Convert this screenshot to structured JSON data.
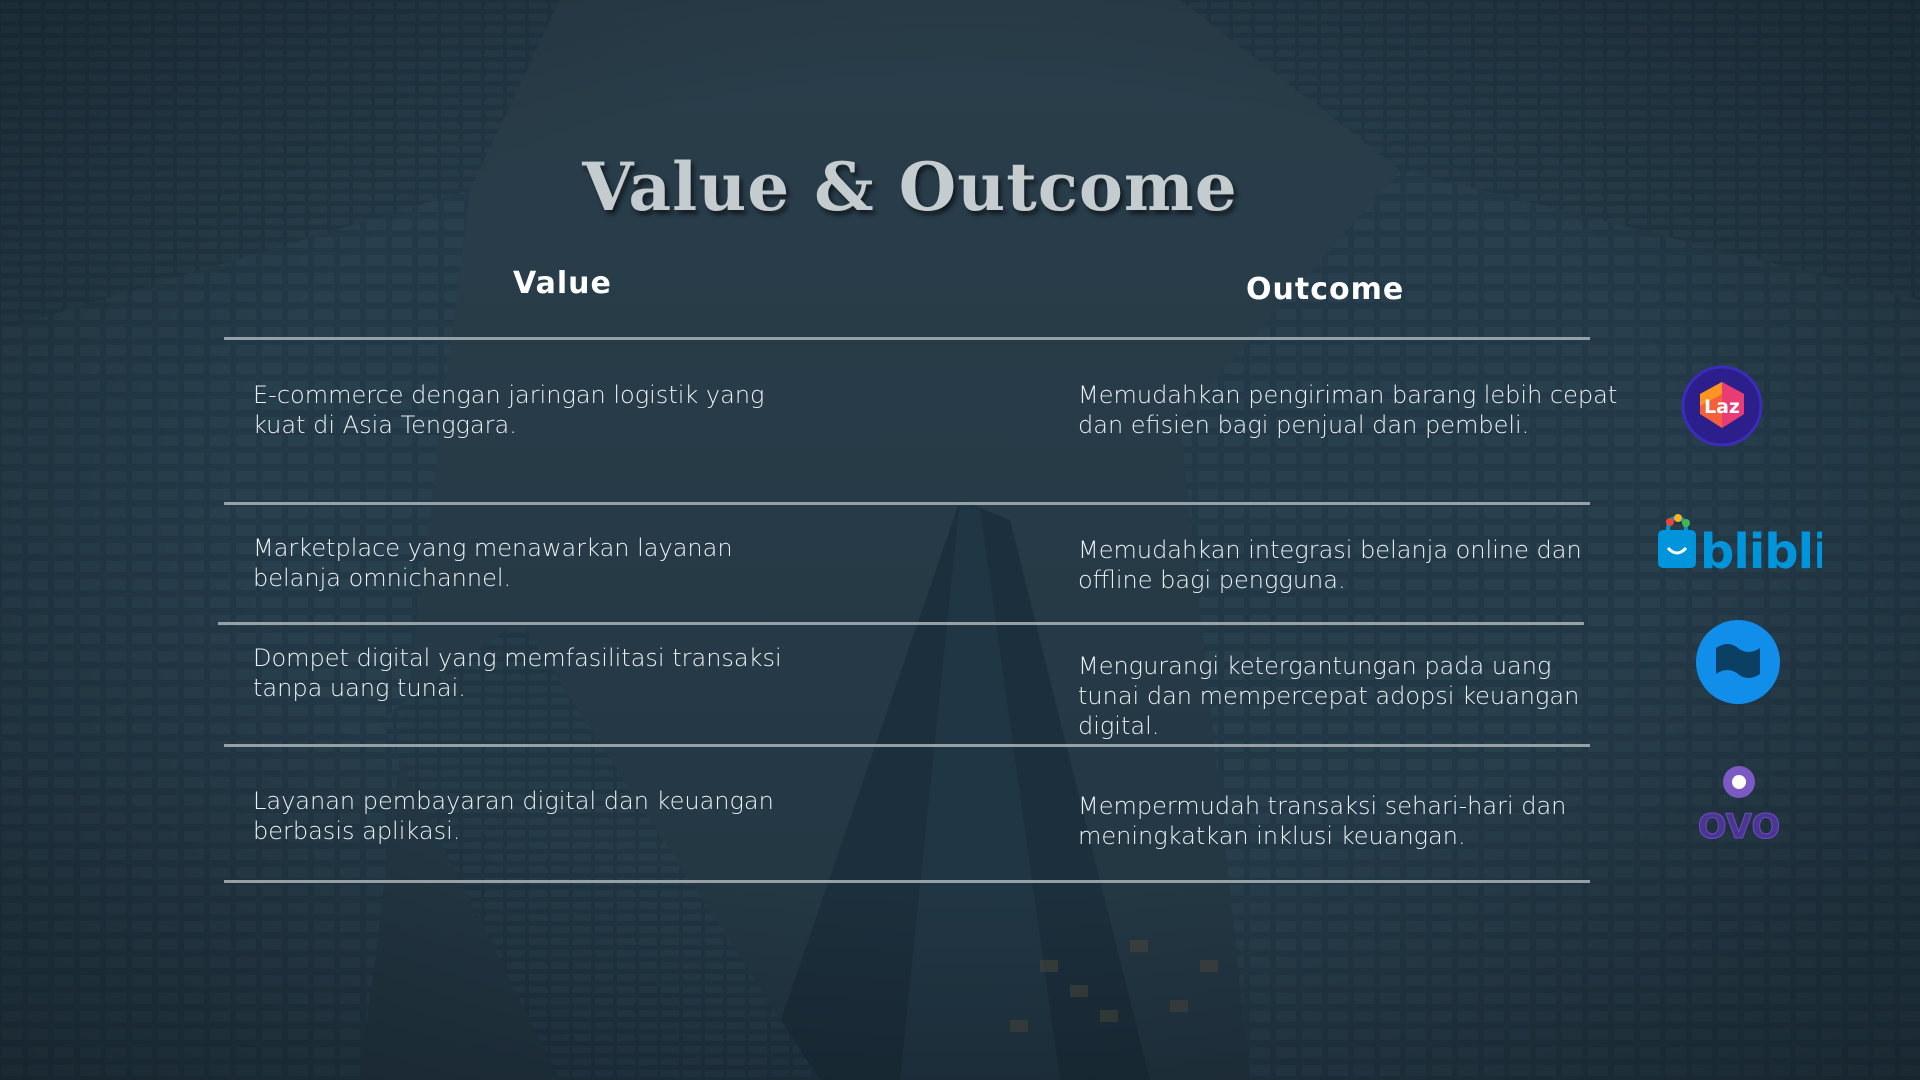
{
  "title": "Value & Outcome",
  "headers": {
    "value": "Value",
    "outcome": "Outcome"
  },
  "rows": [
    {
      "value": "E-commerce dengan jaringan logistik yang kuat di Asia Tenggara.",
      "outcome": "Memudahkan pengiriman barang lebih cepat dan efisien bagi penjual dan pembeli.",
      "logo": "lazada-logo"
    },
    {
      "value": "Marketplace yang menawarkan layanan belanja omnichannel.",
      "outcome": "Memudahkan integrasi belanja online dan offline bagi pengguna.",
      "logo": "blibli-logo"
    },
    {
      "value": "Dompet digital yang memfasilitasi transaksi tanpa uang tunai.",
      "outcome": "Mengurangi ketergantungan pada uang tunai dan mempercepat adopsi keuangan digital.",
      "logo": "dana-logo"
    },
    {
      "value": "Layanan pembayaran digital dan keuangan berbasis aplikasi.",
      "outcome": "Mempermudah transaksi sehari-hari dan meningkatkan inklusi keuangan.",
      "logo": "ovo-logo"
    }
  ],
  "logos": {
    "lazada": "Laz",
    "blibli": "blibli",
    "ovo": "OVO"
  },
  "colors": {
    "background": "#1f3543",
    "lazada_purple": "#2c1f8c",
    "blibli_blue": "#0095da",
    "dana_blue": "#118eea",
    "ovo_purple": "#4c3494"
  }
}
